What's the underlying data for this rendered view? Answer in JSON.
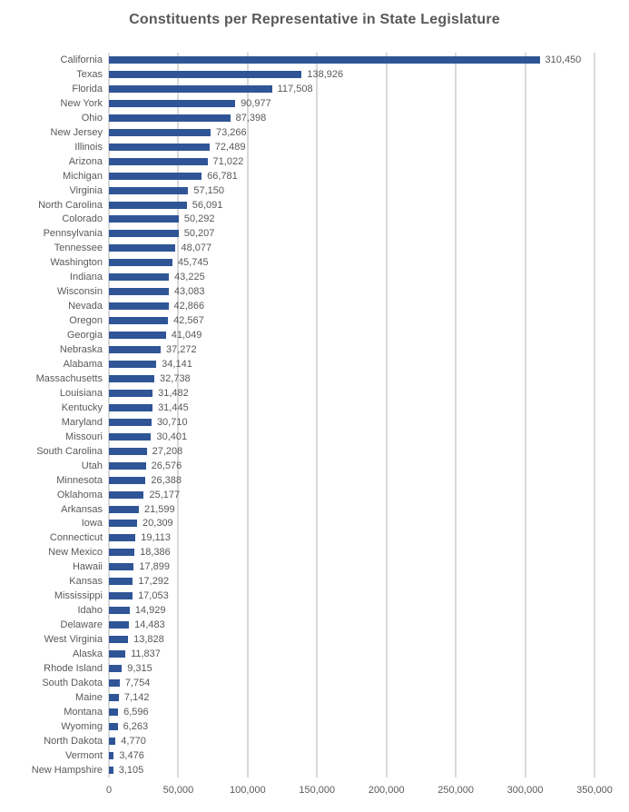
{
  "title": "Constituents per Representative in State Legislature",
  "colors": {
    "bar": "#2F5597",
    "gridline": "#D9D9D9",
    "text": "#595959",
    "background": "#FFFFFF"
  },
  "chart_data": {
    "type": "bar",
    "orientation": "horizontal",
    "title": "Constituents per Representative in State Legislature",
    "grid": true,
    "legend": "none",
    "xlim": [
      0,
      350000
    ],
    "x_ticks": [
      {
        "value": 0,
        "label": "0"
      },
      {
        "value": 50000,
        "label": "50,000"
      },
      {
        "value": 100000,
        "label": "100,000"
      },
      {
        "value": 150000,
        "label": "150,000"
      },
      {
        "value": 200000,
        "label": "200,000"
      },
      {
        "value": 250000,
        "label": "250,000"
      },
      {
        "value": 300000,
        "label": "300,000"
      },
      {
        "value": 350000,
        "label": "350,000"
      }
    ],
    "categories": [
      "California",
      "Texas",
      "Florida",
      "New York",
      "Ohio",
      "New Jersey",
      "Illinois",
      "Arizona",
      "Michigan",
      "Virginia",
      "North Carolina",
      "Colorado",
      "Pennsylvania",
      "Tennessee",
      "Washington",
      "Indiana",
      "Wisconsin",
      "Nevada",
      "Oregon",
      "Georgia",
      "Nebraska",
      "Alabama",
      "Massachusetts",
      "Louisiana",
      "Kentucky",
      "Maryland",
      "Missouri",
      "South Carolina",
      "Utah",
      "Minnesota",
      "Oklahoma",
      "Arkansas",
      "Iowa",
      "Connecticut",
      "New Mexico",
      "Hawaii",
      "Kansas",
      "Mississippi",
      "Idaho",
      "Delaware",
      "West Virginia",
      "Alaska",
      "Rhode Island",
      "South Dakota",
      "Maine",
      "Montana",
      "Wyoming",
      "North Dakota",
      "Vermont",
      "New Hampshire"
    ],
    "values": [
      310450,
      138926,
      117508,
      90977,
      87398,
      73266,
      72489,
      71022,
      66781,
      57150,
      56091,
      50292,
      50207,
      48077,
      45745,
      43225,
      43083,
      42866,
      42567,
      41049,
      37272,
      34141,
      32738,
      31482,
      31445,
      30710,
      30401,
      27208,
      26576,
      26388,
      25177,
      21599,
      20309,
      19113,
      18386,
      17899,
      17292,
      17053,
      14929,
      14483,
      13828,
      11837,
      9315,
      7754,
      7142,
      6596,
      6263,
      4770,
      3476,
      3105
    ],
    "value_labels": [
      "310,450",
      "138,926",
      "117,508",
      "90,977",
      "87,398",
      "73,266",
      "72,489",
      "71,022",
      "66,781",
      "57,150",
      "56,091",
      "50,292",
      "50,207",
      "48,077",
      "45,745",
      "43,225",
      "43,083",
      "42,866",
      "42,567",
      "41,049",
      "37,272",
      "34,141",
      "32,738",
      "31,482",
      "31,445",
      "30,710",
      "30,401",
      "27,208",
      "26,576",
      "26,388",
      "25,177",
      "21,599",
      "20,309",
      "19,113",
      "18,386",
      "17,899",
      "17,292",
      "17,053",
      "14,929",
      "14,483",
      "13,828",
      "11,837",
      "9,315",
      "7,754",
      "7,142",
      "6,596",
      "6,263",
      "4,770",
      "3,476",
      "3,105"
    ]
  }
}
